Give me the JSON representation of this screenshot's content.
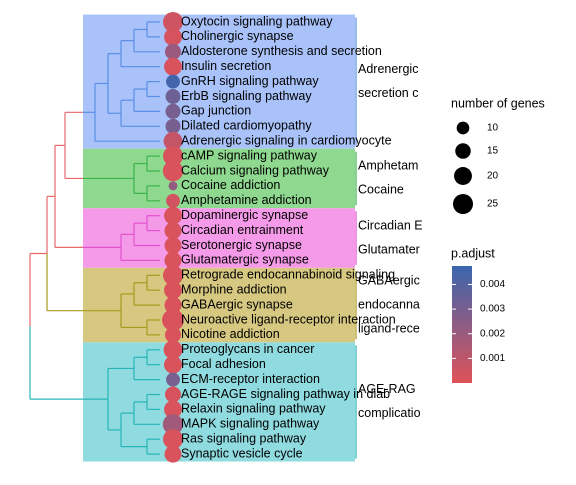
{
  "chart_data": {
    "type": "treeplot",
    "categories": [
      "Oxytocin signaling pathway",
      "Cholinergic synapse",
      "Aldosterone synthesis and secretion",
      "Insulin secretion",
      "GnRH signaling pathway",
      "ErbB signaling pathway",
      "Gap junction",
      "Dilated cardiomyopathy",
      "Adrenergic signaling in cardiomyocyte",
      "cAMP signaling pathway",
      "Calcium signaling pathway",
      "Cocaine addiction",
      "Amphetamine addiction",
      "Dopaminergic synapse",
      "Circadian entrainment",
      "Serotonergic synapse",
      "Glutamatergic synapse",
      "Retrograde endocannabinoid signaling",
      "Morphine addiction",
      "GABAergic synapse",
      "Neuroactive ligand-receptor interaction",
      "Nicotine addiction",
      "Proteoglycans in cancer",
      "Focal adhesion",
      "ECM-receptor interaction",
      "AGE-RAGE signaling pathway in diab",
      "Relaxin signaling pathway",
      "MAPK signaling pathway",
      "Ras signaling pathway",
      "Synaptic vesicle cycle"
    ],
    "series": [
      {
        "name": "number of genes",
        "values": [
          25,
          20,
          16,
          20,
          12,
          14,
          14,
          14,
          22,
          25,
          26,
          5,
          12,
          20,
          18,
          18,
          18,
          25,
          20,
          18,
          30,
          16,
          22,
          20,
          12,
          16,
          20,
          26,
          25,
          18
        ]
      },
      {
        "name": "p.adjust",
        "values": [
          0.0005,
          0.0003,
          0.002,
          0.0002,
          0.0045,
          0.0033,
          0.003,
          0.003,
          0.0008,
          0.0002,
          0.0002,
          0.0022,
          0.0004,
          0.0002,
          0.0002,
          0.0002,
          0.0002,
          0.0002,
          0.0002,
          0.0002,
          0.0002,
          0.0002,
          0.0002,
          0.0002,
          0.003,
          0.0003,
          0.0002,
          0.0018,
          0.0002,
          0.0002
        ]
      }
    ],
    "cluster_labels": [
      [
        "Adrenergic",
        "secretion c"
      ],
      [
        "Amphetam",
        "Cocaine"
      ],
      [
        "Circadian E",
        "Glutamater"
      ],
      [
        "GABAergic",
        "endocanna",
        "ligand-rece"
      ],
      [
        "AGE-RAG",
        "complicatio"
      ]
    ],
    "cluster_colors": [
      "#5b8ee6",
      "#3cb44b",
      "#e052cf",
      "#a89a1e",
      "#28b5b9"
    ],
    "size_legend": {
      "title": "number of genes",
      "values": [
        10,
        15,
        20,
        25
      ]
    },
    "color_legend": {
      "title": "p.adjust",
      "clim": [
        0,
        0.00475
      ],
      "ticks": [
        0.001,
        0.002,
        0.003,
        0.004
      ],
      "low_color": "#e05259",
      "high_color": "#3a66ae"
    }
  }
}
